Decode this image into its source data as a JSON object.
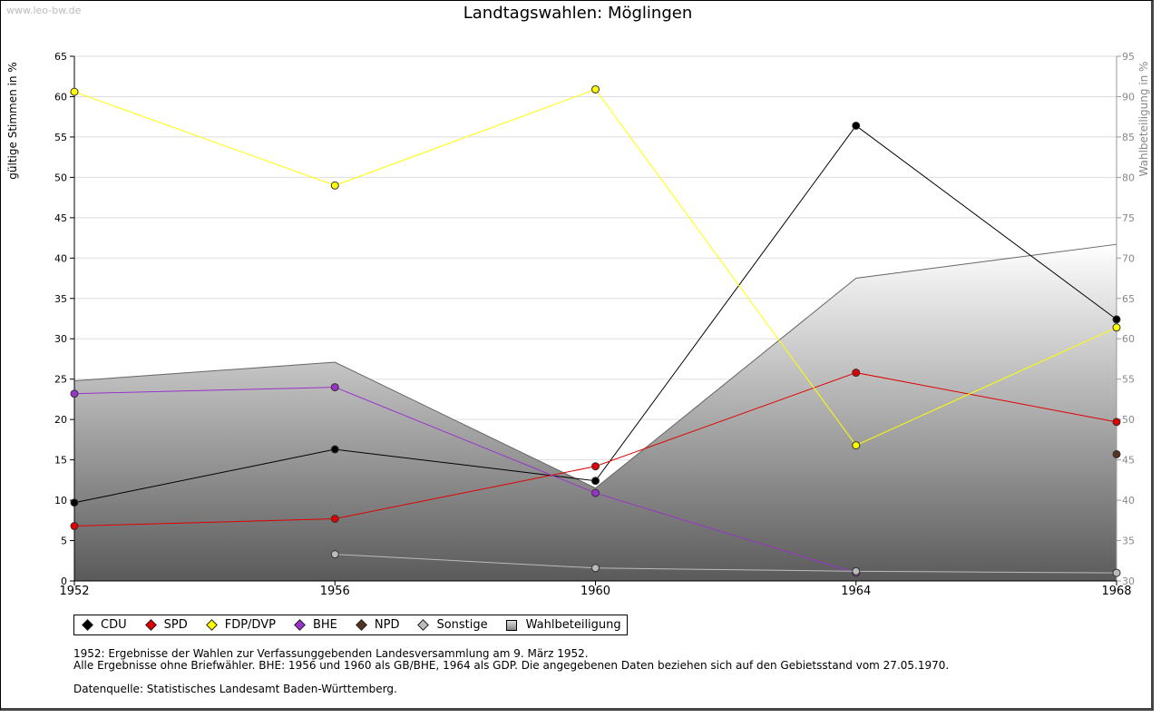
{
  "watermark": "www.leo-bw.de",
  "chart_data": {
    "type": "line",
    "title": "Landtagswahlen: Möglingen",
    "ylabel": "gültige Stimmen in %",
    "y2label": "Wahlbeteiligung in %",
    "ylim": [
      0,
      65
    ],
    "y2lim": [
      30,
      95
    ],
    "yticks": [
      0,
      5,
      10,
      15,
      20,
      25,
      30,
      35,
      40,
      45,
      50,
      55,
      60,
      65
    ],
    "y2ticks": [
      30,
      35,
      40,
      45,
      50,
      55,
      60,
      65,
      70,
      75,
      80,
      85,
      90,
      95
    ],
    "x": [
      1952,
      1956,
      1960,
      1964,
      1968
    ],
    "area": {
      "name": "Wahlbeteiligung",
      "values": [
        54.8,
        57.1,
        41.5,
        67.5,
        71.7
      ]
    },
    "series": [
      {
        "name": "CDU",
        "color": "#000000",
        "values": [
          9.7,
          16.3,
          12.4,
          56.4,
          32.4
        ]
      },
      {
        "name": "SPD",
        "color": "#e00000",
        "values": [
          6.8,
          7.7,
          14.2,
          25.8,
          19.7
        ]
      },
      {
        "name": "FDP/DVP",
        "color": "#ffff00",
        "values": [
          60.6,
          49.0,
          60.9,
          16.8,
          31.4
        ]
      },
      {
        "name": "BHE",
        "color": "#9933cc",
        "values": [
          23.2,
          24.0,
          10.9,
          1.0,
          null
        ]
      },
      {
        "name": "NPD",
        "color": "#553322",
        "values": [
          null,
          null,
          null,
          null,
          15.7
        ]
      },
      {
        "name": "Sonstige",
        "color": "#bbbbbb",
        "values": [
          null,
          3.3,
          1.6,
          1.2,
          1.0
        ]
      }
    ]
  },
  "legend": [
    "CDU",
    "SPD",
    "FDP/DVP",
    "BHE",
    "NPD",
    "Sonstige",
    "Wahlbeteiligung"
  ],
  "notes": {
    "line1": "1952: Ergebnisse der Wahlen zur Verfassunggebenden Landesversammlung am 9. März 1952.",
    "line2": "Alle Ergebnisse ohne Briefwähler. BHE: 1956 und 1960 als GB/BHE, 1964 als GDP. Die angegebenen Daten beziehen sich auf den Gebietsstand vom 27.05.1970.",
    "line3": "Datenquelle: Statistisches Landesamt Baden-Württemberg."
  }
}
